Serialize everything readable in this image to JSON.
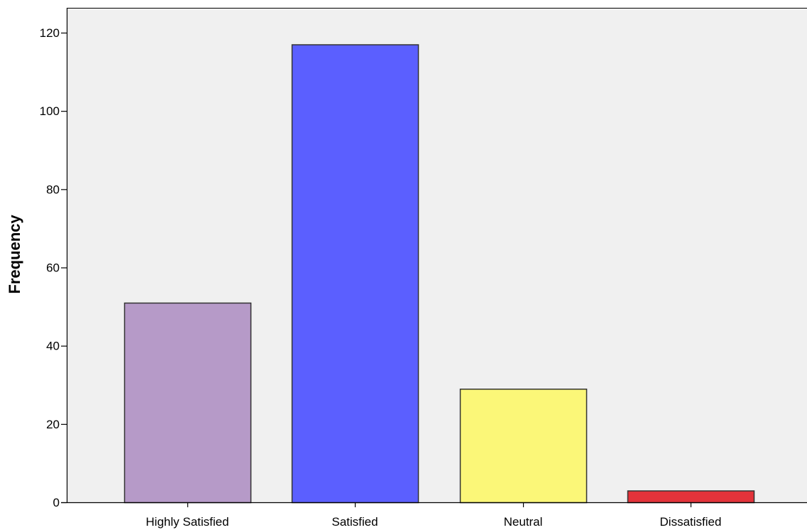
{
  "chart_data": {
    "type": "bar",
    "title": "",
    "xlabel": "",
    "ylabel": "Frequency",
    "categories": [
      "Highly Satisfied",
      "Satisfied",
      "Neutral",
      "Dissatisfied"
    ],
    "values": [
      51,
      117,
      29,
      3
    ],
    "ylim": [
      0,
      120
    ],
    "y_ticks": [
      0,
      20,
      40,
      60,
      80,
      100,
      120
    ],
    "y_tick_labels": [
      "0",
      "20",
      "40",
      "60",
      "80",
      "100",
      "120"
    ],
    "bar_colors": [
      "#b69ac8",
      "#5b5fff",
      "#fbf778",
      "#e3333a"
    ],
    "bar_outline_color": "#333333",
    "plot_background": "#f0f0f0",
    "grid": false,
    "legend": "none"
  }
}
